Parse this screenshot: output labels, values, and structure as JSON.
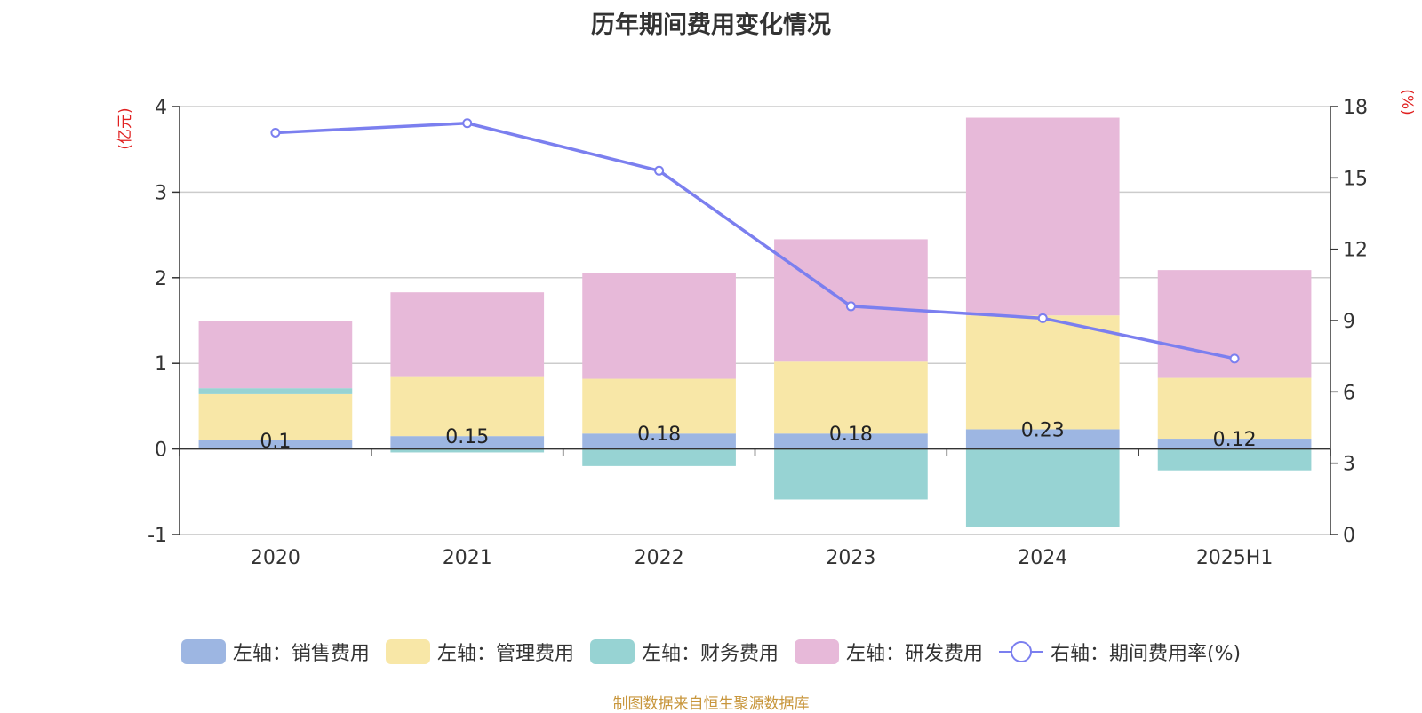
{
  "chart_data": {
    "type": "bar",
    "title": "历年期间费用变化情况",
    "categories": [
      "2020",
      "2021",
      "2022",
      "2023",
      "2024",
      "2025H1"
    ],
    "stacked": true,
    "y_left": {
      "label": "(亿元)",
      "ticks": [
        "-1",
        "0",
        "1",
        "2",
        "3",
        "4"
      ],
      "range": [
        -1,
        4
      ]
    },
    "y_right": {
      "label": "(%)",
      "ticks": [
        "0",
        "3",
        "6",
        "9",
        "12",
        "15",
        "18"
      ],
      "range": [
        0,
        18
      ]
    },
    "series": [
      {
        "name": "左轴：销售费用",
        "axis": "left",
        "type": "bar",
        "color": "#9db6e2",
        "values": [
          0.1,
          0.15,
          0.18,
          0.18,
          0.23,
          0.12
        ],
        "labels": [
          "0.1",
          "0.15",
          "0.18",
          "0.18",
          "0.23",
          "0.12"
        ]
      },
      {
        "name": "左轴：管理费用",
        "axis": "left",
        "type": "bar",
        "color": "#f8e7a7",
        "values": [
          0.54,
          0.69,
          0.64,
          0.84,
          1.33,
          0.71
        ]
      },
      {
        "name": "左轴：财务费用",
        "axis": "left",
        "type": "bar",
        "color": "#97d3d3",
        "values": [
          0.07,
          -0.04,
          -0.2,
          -0.59,
          -0.91,
          -0.25
        ]
      },
      {
        "name": "左轴：研发费用",
        "axis": "left",
        "type": "bar",
        "color": "#e7b9d9",
        "values": [
          0.79,
          0.99,
          1.23,
          1.43,
          2.31,
          1.26
        ]
      },
      {
        "name": "右轴：期间费用率(%)",
        "axis": "right",
        "type": "line",
        "color": "#7b7fef",
        "values": [
          16.9,
          17.3,
          15.3,
          9.6,
          9.1,
          7.4
        ]
      }
    ],
    "grid": true,
    "legend_position": "bottom"
  },
  "source": "制图数据来自恒生聚源数据库"
}
